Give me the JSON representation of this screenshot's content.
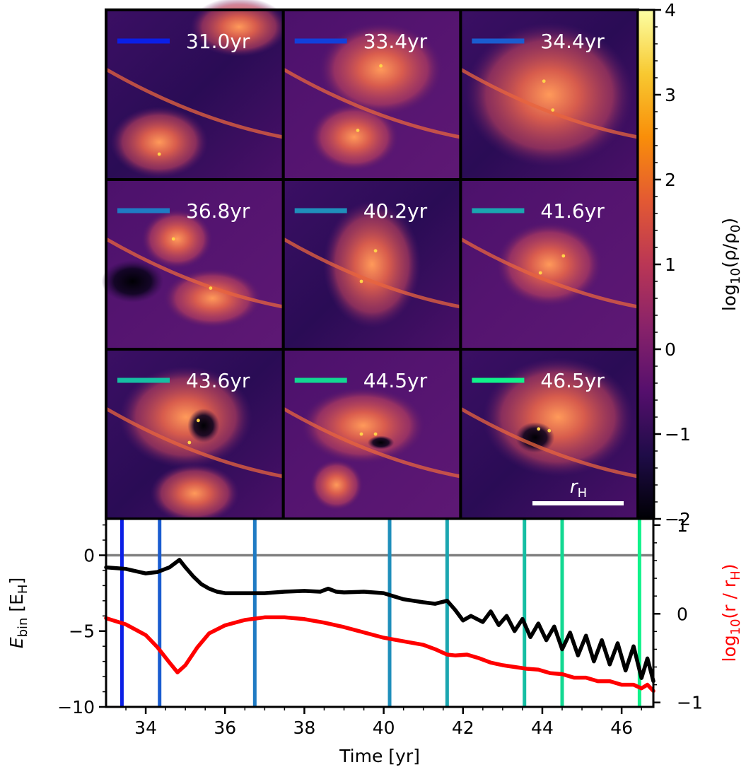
{
  "panels": {
    "rows": 3,
    "cols": 3,
    "labels": [
      "31.0yr",
      "33.4yr",
      "34.4yr",
      "36.8yr",
      "40.2yr",
      "41.6yr",
      "43.6yr",
      "44.5yr",
      "46.5yr"
    ],
    "colors": [
      "#0b1fe6",
      "#1240db",
      "#1a5cd0",
      "#1f7bc4",
      "#1f8fbb",
      "#1aa6b0",
      "#16bfa3",
      "#12d892",
      "#10f28a"
    ],
    "scale_bar_label": "r",
    "scale_bar_sub": "H"
  },
  "colorbar": {
    "label_prefix": "log",
    "label_sub": "10",
    "label_rest": "(ρ/ρ",
    "label_sub2": "0",
    "label_end": ")",
    "ticks": [
      "4",
      "3",
      "2",
      "1",
      "0",
      "−1",
      "−2"
    ],
    "range": [
      -2,
      4
    ],
    "colors": [
      "#000004",
      "#1f0c48",
      "#550f6d",
      "#88226a",
      "#ba3655",
      "#e35933",
      "#f98e09",
      "#f8c931",
      "#fcffa4"
    ]
  },
  "chart_data": {
    "type": "line",
    "xlabel": "Time [yr]",
    "xlim": [
      33.0,
      46.8
    ],
    "xticks": [
      34,
      36,
      38,
      40,
      42,
      44,
      46
    ],
    "xtick_labels": [
      "34",
      "36",
      "38",
      "40",
      "42",
      "44",
      "46"
    ],
    "left_axis": {
      "ylabel_main": "E",
      "ylabel_sub": "bin",
      "ylabel_unit_open": " [E",
      "ylabel_unit_sub": "H",
      "ylabel_unit_close": "]",
      "ylim": [
        -10,
        2.4
      ],
      "yticks": [
        0,
        -5,
        -10
      ],
      "ytick_labels": [
        "0",
        "−5",
        "−10"
      ]
    },
    "right_axis": {
      "ylabel_prefix": "log",
      "ylabel_sub": "10",
      "ylabel_mid": "(r / r",
      "ylabel_sub2": "H",
      "ylabel_end": ")",
      "ylim": [
        -1.05,
        1.07
      ],
      "yticks": [
        1,
        0,
        -1
      ],
      "ytick_labels": [
        "1",
        "0",
        "−1"
      ],
      "color": "#ff0000"
    },
    "zero_line": {
      "y": 0,
      "color": "#808080"
    },
    "snapshot_times": [
      33.4,
      34.35,
      36.75,
      40.15,
      41.6,
      43.55,
      44.5,
      46.45
    ],
    "snapshot_colors": [
      "#0b1fe6",
      "#1a5cd0",
      "#1f7bc4",
      "#1f8fbb",
      "#1aa6b0",
      "#16bfa3",
      "#12d892",
      "#10f28a"
    ],
    "series": [
      {
        "name": "E_bin",
        "axis": "left",
        "color": "#000000",
        "x": [
          33.0,
          33.5,
          34.0,
          34.3,
          34.6,
          34.85,
          35.0,
          35.2,
          35.4,
          35.6,
          35.8,
          36.0,
          36.5,
          37.0,
          37.5,
          38.0,
          38.4,
          38.6,
          38.8,
          39.0,
          39.5,
          40.0,
          40.5,
          41.0,
          41.3,
          41.6,
          41.8,
          42.0,
          42.2,
          42.5,
          42.7,
          42.9,
          43.1,
          43.3,
          43.5,
          43.7,
          43.9,
          44.1,
          44.3,
          44.5,
          44.7,
          44.9,
          45.1,
          45.3,
          45.5,
          45.7,
          45.9,
          46.1,
          46.3,
          46.5,
          46.65,
          46.8
        ],
        "y": [
          -0.8,
          -0.9,
          -1.2,
          -1.1,
          -0.8,
          -0.3,
          -0.8,
          -1.4,
          -1.9,
          -2.2,
          -2.4,
          -2.5,
          -2.5,
          -2.5,
          -2.4,
          -2.35,
          -2.4,
          -2.2,
          -2.4,
          -2.45,
          -2.4,
          -2.5,
          -2.9,
          -3.1,
          -3.2,
          -3.0,
          -3.6,
          -4.3,
          -4.0,
          -4.4,
          -3.7,
          -4.6,
          -4.0,
          -5.0,
          -4.2,
          -5.4,
          -4.5,
          -5.6,
          -4.7,
          -6.2,
          -5.1,
          -6.6,
          -5.3,
          -7.0,
          -5.6,
          -7.2,
          -5.8,
          -7.6,
          -6.0,
          -8.1,
          -6.8,
          -8.3
        ]
      },
      {
        "name": "log10(r / r_H)",
        "axis": "right",
        "color": "#ff0000",
        "x": [
          33.0,
          33.5,
          34.0,
          34.3,
          34.6,
          34.8,
          35.0,
          35.3,
          35.6,
          36.0,
          36.5,
          37.0,
          37.5,
          38.0,
          38.5,
          39.0,
          39.5,
          40.0,
          40.5,
          41.0,
          41.3,
          41.6,
          41.8,
          42.1,
          42.4,
          42.7,
          43.0,
          43.3,
          43.6,
          43.9,
          44.2,
          44.5,
          44.8,
          45.1,
          45.4,
          45.7,
          46.0,
          46.3,
          46.5,
          46.65,
          46.8
        ],
        "y": [
          -0.05,
          -0.12,
          -0.24,
          -0.38,
          -0.55,
          -0.66,
          -0.58,
          -0.38,
          -0.22,
          -0.13,
          -0.07,
          -0.04,
          -0.04,
          -0.06,
          -0.1,
          -0.15,
          -0.21,
          -0.27,
          -0.31,
          -0.35,
          -0.4,
          -0.46,
          -0.47,
          -0.46,
          -0.5,
          -0.55,
          -0.58,
          -0.6,
          -0.62,
          -0.63,
          -0.67,
          -0.68,
          -0.72,
          -0.72,
          -0.76,
          -0.76,
          -0.8,
          -0.8,
          -0.84,
          -0.8,
          -0.87
        ]
      }
    ]
  }
}
